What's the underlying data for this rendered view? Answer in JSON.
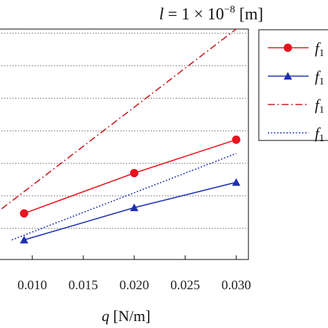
{
  "chart_data": {
    "type": "line",
    "title_parts": {
      "l": "l",
      "eq": " = 1 × 10",
      "exp": "−8",
      "unit": " [m]"
    },
    "xlabel_parts": {
      "q": "q",
      "unit": " [N/m]"
    },
    "xlim": [
      0.0067,
      0.0312
    ],
    "ylim": [
      0.0,
      1.0
    ],
    "x_ticks": [
      "0.010",
      "0.015",
      "0.020",
      "0.025",
      "0.030"
    ],
    "x_tick_values": [
      0.01,
      0.015,
      0.02,
      0.025,
      0.03
    ],
    "grid": "horizontal-dotted",
    "legend_position": "right",
    "series": [
      {
        "name": "f1",
        "style": "solid",
        "marker": "circle",
        "color": "#e8141c",
        "x": [
          0.0092,
          0.02,
          0.03
        ],
        "y": [
          0.2,
          0.375,
          0.52
        ]
      },
      {
        "name": "f1",
        "style": "solid",
        "marker": "triangle",
        "color": "#1f2fb0",
        "x": [
          0.0092,
          0.02,
          0.03
        ],
        "y": [
          0.085,
          0.225,
          0.335
        ]
      },
      {
        "name": "f1",
        "style": "dashdot",
        "marker": "none",
        "color": "#c8141c",
        "x": [
          0.007,
          0.03
        ],
        "y": [
          0.22,
          1.0
        ]
      },
      {
        "name": "f1",
        "style": "dotted",
        "marker": "none",
        "color": "#1f2fb0",
        "x": [
          0.008,
          0.03
        ],
        "y": [
          0.085,
          0.46
        ]
      }
    ]
  }
}
